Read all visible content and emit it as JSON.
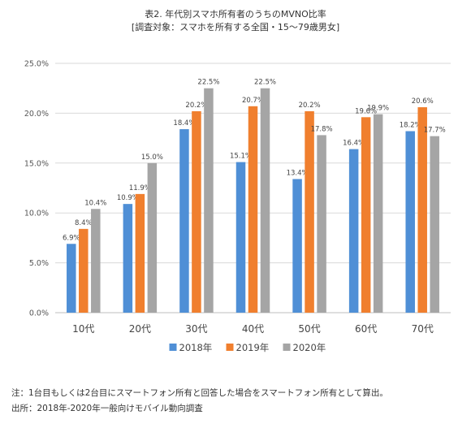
{
  "title_line1": "表2. 年代別スマホ所有者のうちのMVNO比率",
  "title_line2": "[調査対象：スマホを所有する全国・15～79歳男女]",
  "notes": {
    "note": "注：1台目もしくは2台目にスマートフォン所有と回答した場合をスマートフォン所有として算出。",
    "source": "出所：2018年-2020年一般向けモバイル動向調査"
  },
  "chart_data": {
    "type": "bar",
    "title": "表2. 年代別スマホ所有者のうちのMVNO比率",
    "subtitle": "[調査対象：スマホを所有する全国・15～79歳男女]",
    "categories": [
      "10代",
      "20代",
      "30代",
      "40代",
      "50代",
      "60代",
      "70代"
    ],
    "series": [
      {
        "name": "2018年",
        "color": "#4f8fd6",
        "values": [
          6.9,
          10.9,
          18.4,
          15.1,
          13.4,
          16.4,
          18.2
        ],
        "labels": [
          "6.9%",
          "10.9%",
          "18.4%",
          "15.1%",
          "13.4%",
          "16.4%",
          "18.2%"
        ]
      },
      {
        "name": "2019年",
        "color": "#f07f2e",
        "values": [
          8.4,
          11.9,
          20.2,
          20.7,
          20.2,
          19.6,
          20.6
        ],
        "labels": [
          "8.4%",
          "11.9%",
          "20.2%",
          "20.7%",
          "20.2%",
          "19.6%",
          "20.6%"
        ]
      },
      {
        "name": "2020年",
        "color": "#a5a5a5",
        "values": [
          10.4,
          15.0,
          22.5,
          22.5,
          17.8,
          19.9,
          17.7
        ],
        "labels": [
          "10.4%",
          "15.0%",
          "22.5%",
          "22.5%",
          "17.8%",
          "19.9%",
          "17.7%"
        ]
      }
    ],
    "ylim": [
      0,
      25
    ],
    "yticks": [
      0,
      5,
      10,
      15,
      20,
      25
    ],
    "ytick_labels": [
      "0.0%",
      "5.0%",
      "10.0%",
      "15.0%",
      "20.0%",
      "25.0%"
    ],
    "grid": true,
    "legend_position": "bottom"
  }
}
